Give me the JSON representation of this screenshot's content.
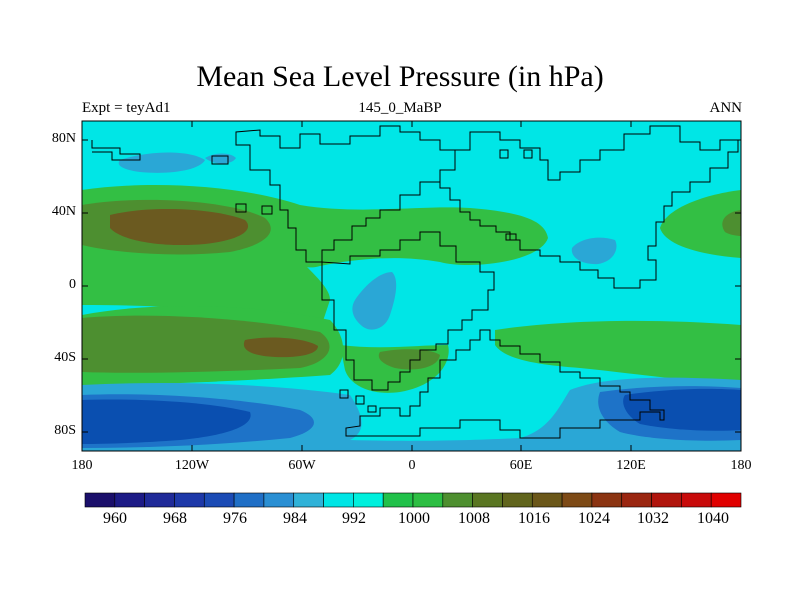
{
  "title": "Mean Sea Level Pressure (in hPa)",
  "subtitle_left": "Expt = teyAd1",
  "subtitle_center": "145_0_MaBP",
  "subtitle_right": "ANN",
  "lat_labels": [
    "80N",
    "40N",
    "0",
    "40S",
    "80S"
  ],
  "lon_labels": [
    "180",
    "120W",
    "60W",
    "0",
    "60E",
    "120E",
    "180"
  ],
  "colorbar": {
    "labels": [
      "960",
      "968",
      "976",
      "984",
      "992",
      "1000",
      "1008",
      "1016",
      "1024",
      "1032",
      "1040"
    ],
    "colors": [
      "#1b0f6b",
      "#1d1b86",
      "#1f2a98",
      "#1d38a8",
      "#1b4bb5",
      "#1f6fc6",
      "#2a8fd3",
      "#2fb2d8",
      "#00e5e5",
      "#00f0dd",
      "#21c14a",
      "#2dbe43",
      "#4e8f2f",
      "#5a7622",
      "#61651d",
      "#6b5719",
      "#7d4a16",
      "#8b3412",
      "#9a2610",
      "#b0150d",
      "#c80a0a",
      "#e00000"
    ]
  },
  "field_colors": {
    "deep_low": "#0a4fb0",
    "low": "#1e73c8",
    "mid_low": "#2aa7d6",
    "base": "#00e6e6",
    "land_low": "#28c5c5",
    "high": "#33bf44",
    "higher": "#4d8f30",
    "highest": "#6b5a20"
  }
}
